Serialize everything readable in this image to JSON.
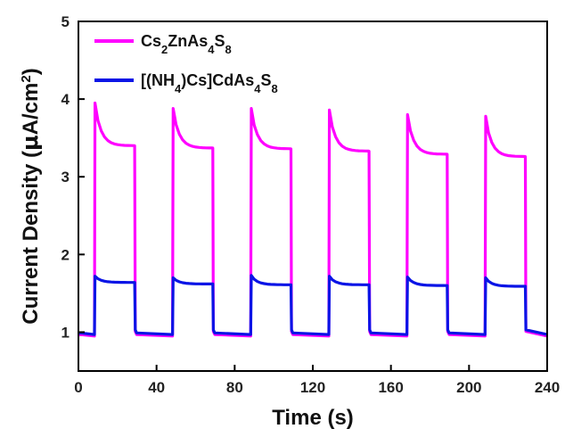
{
  "chart_data": {
    "type": "line",
    "title": "",
    "xlabel": "Time (s)",
    "ylabel_parts": [
      "Current Density (",
      "μ",
      "A/cm",
      "2",
      ")"
    ],
    "xlim": [
      0,
      240
    ],
    "ylim": [
      0.5,
      5
    ],
    "xticks": [
      0,
      40,
      80,
      120,
      160,
      200,
      240
    ],
    "yticks": [
      1,
      2,
      3,
      4,
      5
    ],
    "grid": false,
    "legend_position": "top-left",
    "series": [
      {
        "name_parts": [
          [
            "Cs",
            "n"
          ],
          [
            "2",
            "sub"
          ],
          [
            "ZnAs",
            "n"
          ],
          [
            "4",
            "sub"
          ],
          [
            "S",
            "n"
          ],
          [
            "8",
            "sub"
          ]
        ],
        "color": "#ff00ff",
        "dark": 0.95,
        "cycles": [
          {
            "on": 8.5,
            "off": 28.8,
            "peak": 3.95,
            "plateau": 3.4
          },
          {
            "on": 48.5,
            "off": 68.8,
            "peak": 3.88,
            "plateau": 3.37
          },
          {
            "on": 88.5,
            "off": 108.8,
            "peak": 3.88,
            "plateau": 3.36
          },
          {
            "on": 128.5,
            "off": 148.8,
            "peak": 3.86,
            "plateau": 3.33
          },
          {
            "on": 168.5,
            "off": 188.8,
            "peak": 3.8,
            "plateau": 3.29
          },
          {
            "on": 208.5,
            "off": 228.8,
            "peak": 3.78,
            "plateau": 3.26
          }
        ]
      },
      {
        "name_parts": [
          [
            "[(NH",
            "n"
          ],
          [
            "4",
            "sub"
          ],
          [
            ")Cs]CdAs",
            "n"
          ],
          [
            "4",
            "sub"
          ],
          [
            "S",
            "n"
          ],
          [
            "8",
            "sub"
          ]
        ],
        "color": "#0a14e6",
        "dark": 0.97,
        "cycles": [
          {
            "on": 8.5,
            "off": 28.8,
            "peak": 1.72,
            "plateau": 1.64
          },
          {
            "on": 48.5,
            "off": 68.8,
            "peak": 1.7,
            "plateau": 1.62
          },
          {
            "on": 88.5,
            "off": 108.8,
            "peak": 1.73,
            "plateau": 1.61
          },
          {
            "on": 128.5,
            "off": 148.8,
            "peak": 1.72,
            "plateau": 1.61
          },
          {
            "on": 168.5,
            "off": 188.8,
            "peak": 1.71,
            "plateau": 1.6
          },
          {
            "on": 208.5,
            "off": 228.8,
            "peak": 1.7,
            "plateau": 1.59
          }
        ]
      }
    ]
  }
}
